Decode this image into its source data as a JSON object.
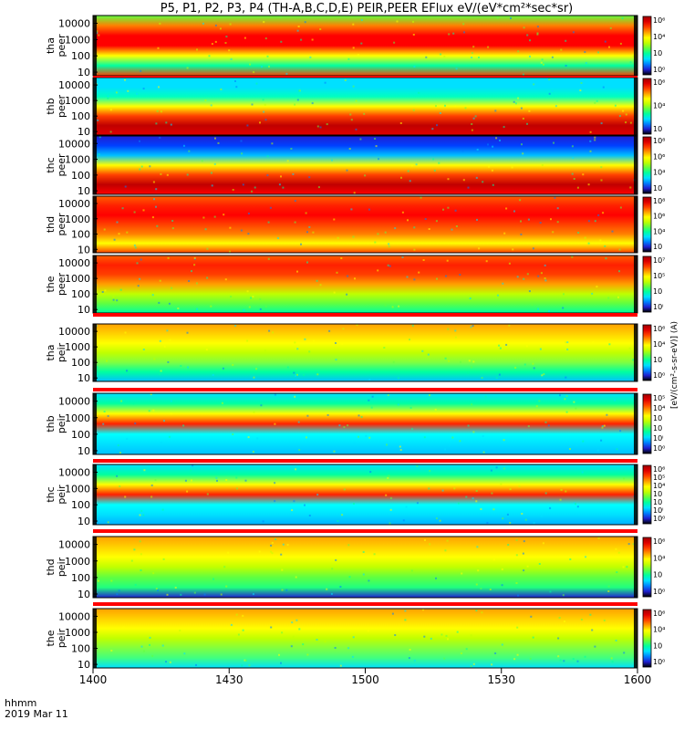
{
  "chart_data": {
    "type": "heatmap",
    "title": "P5, P1, P2, P3, P4 (TH-A,B,C,D,E) PEIR,PEER EFlux eV/(eV*cm²*sec*sr)",
    "time_axis": {
      "tick_labels": [
        "1400",
        "1430",
        "1500",
        "1530",
        "1600"
      ],
      "range": [
        "1400",
        "1600"
      ],
      "unit_label": "hhmm",
      "date_label": "2019 Mar 11"
    },
    "yscale": "log",
    "energy_ylim": [
      6,
      30000
    ],
    "energy_tick_values": [
      10,
      100,
      1000,
      10000
    ],
    "energy_tick_labels": [
      "10",
      "100",
      "1000",
      "10000"
    ],
    "colorbar_scale": "log",
    "colorbar_side_label": "[eV/(cm²-s-sr-eV)] (A)",
    "panels": [
      {
        "probe": "tha",
        "species": "peer",
        "label_top": "tha",
        "label_bottom": "peer",
        "clim_exp": [
          0,
          7
        ],
        "cbar_ticks": [
          "10⁶",
          "10⁴",
          "10⁲",
          "10⁰"
        ]
      },
      {
        "probe": "thb",
        "species": "peer",
        "label_top": "thb",
        "label_bottom": "peer",
        "clim_exp": [
          1,
          7
        ],
        "cbar_ticks": [
          "10⁶",
          "10⁴",
          "10⁲"
        ]
      },
      {
        "probe": "thc",
        "species": "peer",
        "label_top": "thc",
        "label_bottom": "peer",
        "clim_exp": [
          1,
          8
        ],
        "cbar_ticks": [
          "10⁸",
          "10⁶",
          "10⁴",
          "10⁲"
        ]
      },
      {
        "probe": "thd",
        "species": "peer",
        "label_top": "thd",
        "label_bottom": "peer",
        "clim_exp": [
          1,
          8
        ],
        "cbar_ticks": [
          "10⁸",
          "10⁶",
          "10⁴",
          "10⁲"
        ]
      },
      {
        "probe": "the",
        "species": "peer",
        "label_top": "the",
        "label_bottom": "peer",
        "clim_exp": [
          0,
          7
        ],
        "cbar_ticks": [
          "10⁷",
          "10⁵",
          "10⁳",
          "10ⁱ"
        ]
      },
      {
        "probe": "tha",
        "species": "peir",
        "label_top": "tha",
        "label_bottom": "peir",
        "clim_exp": [
          0,
          6
        ],
        "cbar_ticks": [
          "10⁶",
          "10⁴",
          "10⁲",
          "10⁰"
        ]
      },
      {
        "probe": "thb",
        "species": "peir",
        "label_top": "thb",
        "label_bottom": "peir",
        "clim_exp": [
          0,
          5
        ],
        "cbar_ticks": [
          "10⁵",
          "10⁴",
          "10⁳",
          "10⁲",
          "10ⁱ",
          "10⁰"
        ]
      },
      {
        "probe": "thc",
        "species": "peir",
        "label_top": "thc",
        "label_bottom": "peir",
        "clim_exp": [
          0,
          6
        ],
        "cbar_ticks": [
          "10⁶",
          "10⁵",
          "10⁴",
          "10⁳",
          "10⁲",
          "10ⁱ",
          "10⁰"
        ]
      },
      {
        "probe": "thd",
        "species": "peir",
        "label_top": "thd",
        "label_bottom": "peir",
        "clim_exp": [
          0,
          6
        ],
        "cbar_ticks": [
          "10⁶",
          "10⁴",
          "10⁲",
          "10⁰"
        ]
      },
      {
        "probe": "the",
        "species": "peir",
        "label_top": "the",
        "label_bottom": "peir",
        "clim_exp": [
          0,
          6
        ],
        "cbar_ticks": [
          "10⁶",
          "10⁴",
          "10⁲",
          "10⁰"
        ]
      }
    ],
    "colormap": [
      "#000000",
      "#2020d0",
      "#0080ff",
      "#00e0ff",
      "#00ffa0",
      "#60ff40",
      "#c0ff00",
      "#ffff00",
      "#ffa000",
      "#ff4000",
      "#e00000",
      "#a00000"
    ]
  }
}
